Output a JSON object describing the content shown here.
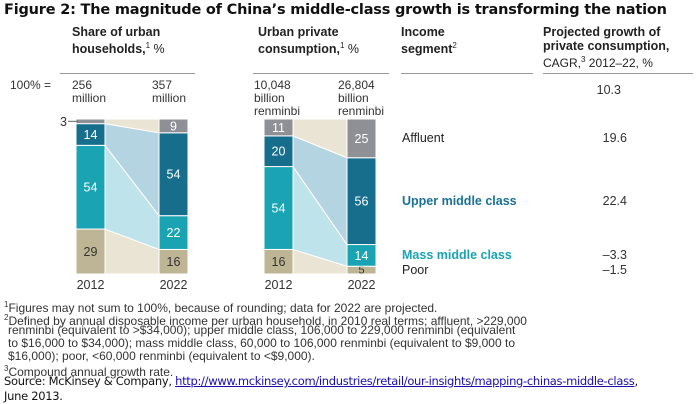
{
  "title": "Figure 2: The magnitude of China’s middle-class growth is transforming the nation",
  "headers": {
    "households_line1": "Share of urban",
    "households_line2": "households,",
    "households_sup": "1",
    "households_unit": " %",
    "consumption_line1": "Urban private",
    "consumption_line2": "consumption,",
    "consumption_sup": "1",
    "consumption_unit": " %",
    "segment_line1": "Income",
    "segment_line2": "segment",
    "segment_sup": "2",
    "growth_line1": "Projected growth of",
    "growth_line2": "private consumption,",
    "growth_line3_a": "CAGR,",
    "growth_sup": "3",
    "growth_line3_b": " 2012–22, %"
  },
  "totals_label": "100% =",
  "totals": {
    "households_2012": [
      "256",
      "million"
    ],
    "households_2022": [
      "357",
      "million"
    ],
    "consumption_2012": [
      "10,048",
      "billion",
      "renminbi"
    ],
    "consumption_2022": [
      "26,804",
      "billion",
      "renminbi"
    ],
    "total_cagr": "10.3"
  },
  "segments": [
    {
      "name": "Affluent",
      "cagr": "19.6",
      "color": "#8e9096"
    },
    {
      "name": "Upper middle class",
      "cagr": "22.4",
      "color": "#166e8c"
    },
    {
      "name": "Mass middle class",
      "cagr": "–3.3",
      "color": "#1aa3b3"
    },
    {
      "name": "Poor",
      "cagr": "–1.5",
      "color": "#bdb594"
    }
  ],
  "chart_data": [
    {
      "type": "bar",
      "title": "Share of urban households, %",
      "categories": [
        "2012",
        "2022"
      ],
      "stacked": true,
      "series": [
        {
          "name": "Poor",
          "values": [
            29,
            16
          ]
        },
        {
          "name": "Mass middle class",
          "values": [
            54,
            22
          ]
        },
        {
          "name": "Upper middle class",
          "values": [
            14,
            54
          ]
        },
        {
          "name": "Affluent",
          "values": [
            3,
            9
          ]
        }
      ],
      "ylim": [
        0,
        100
      ]
    },
    {
      "type": "bar",
      "title": "Urban private consumption, %",
      "categories": [
        "2012",
        "2022"
      ],
      "stacked": true,
      "series": [
        {
          "name": "Poor",
          "values": [
            16,
            5
          ]
        },
        {
          "name": "Mass middle class",
          "values": [
            54,
            14
          ]
        },
        {
          "name": "Upper middle class",
          "values": [
            20,
            56
          ]
        },
        {
          "name": "Affluent",
          "values": [
            11,
            25
          ]
        }
      ],
      "ylim": [
        0,
        100
      ]
    }
  ],
  "footnotes": {
    "f1_sup": "1",
    "f1": "Figures may not sum to 100%, because of rounding; data for 2022 are projected.",
    "f2_sup": "2",
    "f2_l1": "Defined by annual disposable income per urban household, in 2010 real terms; affluent, >229,000",
    "f2_l2": "renminbi (equivalent to >$34,000); upper middle class, 106,000 to 229,000 renminbi (equivalent",
    "f2_l3": "to $16,000 to $34,000); mass middle class, 60,000 to 106,000 renminbi (equivalent to $9,000 to",
    "f2_l4": "$16,000); poor, <60,000 renminbi (equivalent to <$9,000).",
    "f3_sup": "3",
    "f3": "Compound annual growth rate."
  },
  "source": {
    "prefix": "Source: McKinsey & Company, ",
    "link": "http://www.mckinsey.com/industries/retail/our-insights/mapping-chinas-middle-class",
    "suffix": ",",
    "line2": "June 2013."
  }
}
